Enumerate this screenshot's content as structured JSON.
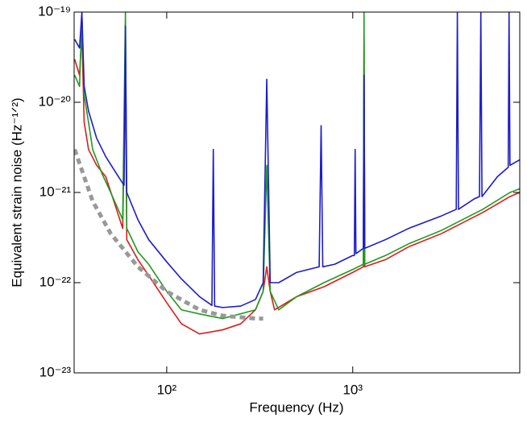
{
  "chart_data": {
    "type": "line",
    "x_label": "Frequency (Hz)",
    "y_label": "Equivalent strain noise (Hz⁻¹ᐟ²)",
    "xscale": "log",
    "yscale": "log",
    "xlim": [
      31.8,
      7900
    ],
    "ylim": [
      1e-23,
      1e-19
    ],
    "xticks": [
      {
        "value": 100,
        "label": "10²"
      },
      {
        "value": 1000,
        "label": "10³"
      }
    ],
    "yticks": [
      {
        "value": 1e-23,
        "label": "10⁻²³"
      },
      {
        "value": 1e-22,
        "label": "10⁻²²"
      },
      {
        "value": 1e-21,
        "label": "10⁻²¹"
      },
      {
        "value": 1e-20,
        "label": "10⁻²⁰"
      },
      {
        "value": 1e-19,
        "label": "10⁻¹⁹"
      }
    ],
    "series": [
      {
        "color": "#dd1c1c",
        "dash": false,
        "x": [
          32,
          34,
          35,
          36,
          38,
          42,
          47,
          52,
          58,
          60,
          61,
          70,
          80,
          100,
          120,
          150,
          200,
          250,
          300,
          330,
          345,
          360,
          380,
          500,
          700,
          1000,
          1140,
          1150,
          1160,
          1500,
          2000,
          3000,
          5000,
          7000,
          7900
        ],
        "values": [
          3e-20,
          2e-20,
          6e-20,
          6e-21,
          3e-21,
          2e-21,
          1.5e-21,
          8e-22,
          4e-22,
          2e-20,
          3e-22,
          1.8e-22,
          1.2e-22,
          6e-23,
          3.5e-23,
          2.7e-23,
          3e-23,
          3.5e-23,
          5e-23,
          8e-23,
          1.5e-22,
          8e-23,
          5e-23,
          7e-23,
          9e-23,
          1.3e-22,
          1.5e-22,
          5e-20,
          1.5e-22,
          1.8e-22,
          2.5e-22,
          3.5e-22,
          6e-22,
          9e-22,
          1e-21
        ]
      },
      {
        "color": "#1e9a1e",
        "dash": false,
        "x": [
          32,
          34,
          35,
          36,
          38,
          40,
          45,
          50,
          58,
          60,
          61,
          70,
          80,
          100,
          120,
          150,
          200,
          300,
          330,
          345,
          360,
          400,
          500,
          700,
          1000,
          1140,
          1150,
          1160,
          1500,
          2000,
          3000,
          5000,
          7000,
          7900
        ],
        "values": [
          2e-20,
          1.5e-20,
          9e-20,
          1.2e-20,
          6e-21,
          3e-21,
          1.6e-21,
          1e-21,
          5e-22,
          1e-19,
          4e-22,
          2.2e-22,
          1.6e-22,
          8e-23,
          5e-23,
          4.5e-23,
          4e-23,
          5e-23,
          8e-23,
          2e-21,
          8e-23,
          5e-23,
          7e-23,
          1e-22,
          1.4e-22,
          1.6e-22,
          1e-19,
          1.6e-22,
          2e-22,
          2.7e-22,
          3.8e-22,
          6.5e-22,
          1e-21,
          1.1e-21
        ]
      },
      {
        "color": "#1c1ccc",
        "dash": false,
        "x": [
          32,
          34,
          35,
          36,
          38,
          42,
          47,
          52,
          55,
          59,
          60,
          61,
          70,
          80,
          100,
          120,
          150,
          175,
          178,
          181,
          200,
          250,
          300,
          330,
          345,
          360,
          400,
          500,
          660,
          676,
          690,
          800,
          1000,
          1020,
          1030,
          1040,
          1140,
          1150,
          1160,
          1500,
          2000,
          3000,
          3600,
          3650,
          3700,
          4500,
          4800,
          4880,
          4950,
          6000,
          6850,
          6920,
          7000,
          7900
        ],
        "values": [
          5e-20,
          4e-20,
          1e-19,
          1.5e-20,
          8e-21,
          4e-21,
          2.5e-21,
          1.8e-21,
          1.5e-21,
          1.2e-21,
          7e-20,
          1e-21,
          5e-22,
          3e-22,
          1.7e-22,
          1.1e-22,
          7e-23,
          5.6e-23,
          3e-21,
          5.5e-23,
          5.3e-23,
          5.5e-23,
          6.5e-23,
          1e-22,
          1.8e-20,
          1e-22,
          1e-22,
          1.3e-22,
          1.5e-22,
          5.5e-21,
          1.5e-22,
          1.6e-22,
          2e-22,
          2e-22,
          3e-21,
          2.1e-22,
          2.4e-22,
          2e-20,
          2.4e-22,
          3e-22,
          4e-22,
          5.5e-22,
          6.5e-22,
          1e-19,
          6.5e-22,
          8.5e-22,
          9e-22,
          1e-19,
          9e-22,
          1.5e-21,
          1.9e-21,
          1e-19,
          2e-21,
          2.3e-21
        ]
      },
      {
        "color": "#999999",
        "dash": true,
        "x": [
          32,
          40,
          50,
          70,
          100,
          150,
          200,
          300,
          330
        ],
        "values": [
          3e-21,
          8e-22,
          3.5e-22,
          1.5e-22,
          8e-23,
          5e-23,
          4.3e-23,
          4e-23,
          4e-23
        ]
      }
    ]
  }
}
